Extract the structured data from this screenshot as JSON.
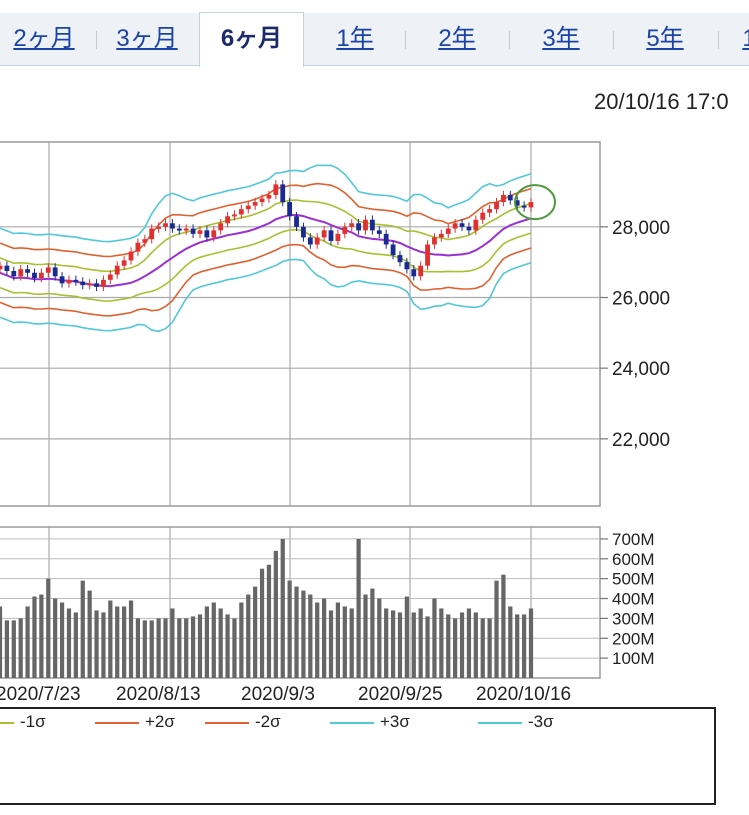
{
  "tabs": [
    {
      "label": "2ヶ月",
      "active": false
    },
    {
      "label": "3ヶ月",
      "active": false
    },
    {
      "label": "6ヶ月",
      "active": true
    },
    {
      "label": "1年",
      "active": false
    },
    {
      "label": "2年",
      "active": false
    },
    {
      "label": "3年",
      "active": false
    },
    {
      "label": "5年",
      "active": false
    },
    {
      "label": "1",
      "active": false
    }
  ],
  "timestamp": "20/10/16 17:0",
  "legend": [
    {
      "label": "-1σ",
      "color": "#a8c030"
    },
    {
      "label": "+2σ",
      "color": "#e06030"
    },
    {
      "label": "-2σ",
      "color": "#e06030"
    },
    {
      "label": "+3σ",
      "color": "#50c8d8"
    },
    {
      "label": "-3σ",
      "color": "#50c8d8"
    }
  ],
  "chart_data": {
    "type": "candlestick-with-bollinger-and-volume",
    "price_axis": {
      "ticks": [
        22000,
        24000,
        26000,
        28000
      ],
      "tick_labels": [
        "22,000",
        "24,000",
        "26,000",
        "28,000"
      ],
      "ylim": [
        20100,
        30400
      ]
    },
    "volume_axis": {
      "ticks": [
        100,
        200,
        300,
        400,
        500,
        600,
        700
      ],
      "tick_labels": [
        "100M",
        "200M",
        "300M",
        "400M",
        "500M",
        "600M",
        "700M"
      ],
      "unit": "M",
      "ylim": [
        0,
        760
      ]
    },
    "x_labels": [
      "2020/7/23",
      "2020/8/13",
      "2020/9/3",
      "2020/9/25",
      "2020/10/16"
    ],
    "colors": {
      "up": "#e03030",
      "down": "#1a2a90",
      "ma": "#9b30d0",
      "sigma1": "#a8c030",
      "sigma2": "#e06030",
      "sigma3": "#50c8d8",
      "volume": "#666666",
      "highlight": "#4a9a3a"
    },
    "close": [
      26900,
      26750,
      26600,
      26800,
      26700,
      26550,
      26700,
      26850,
      26600,
      26400,
      26500,
      26450,
      26350,
      26400,
      26300,
      26500,
      26650,
      26900,
      27050,
      27300,
      27550,
      27650,
      27950,
      28000,
      28100,
      27950,
      27900,
      27950,
      27800,
      27900,
      27700,
      27900,
      28100,
      28300,
      28350,
      28500,
      28600,
      28700,
      28800,
      28900,
      29200,
      28700,
      28300,
      28000,
      27700,
      27500,
      27700,
      27900,
      27600,
      27800,
      28000,
      28100,
      27900,
      28200,
      27900,
      27800,
      27500,
      27200,
      27000,
      26800,
      26600,
      26900,
      27500,
      27700,
      27800,
      27950,
      28100,
      28000,
      27900,
      28200,
      28400,
      28500,
      28700,
      28900,
      28750,
      28600,
      28550,
      28700
    ]
  }
}
